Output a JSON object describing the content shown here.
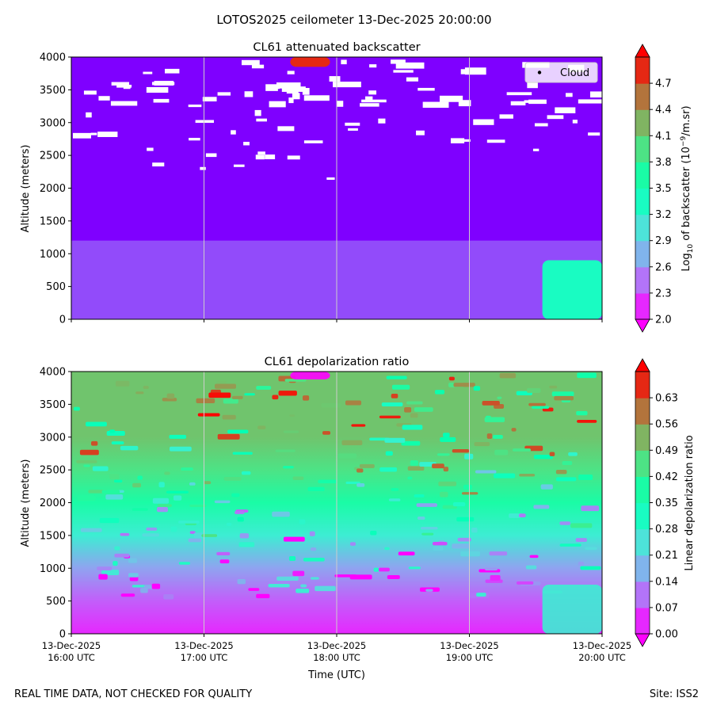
{
  "figure": {
    "suptitle": "LOTOS2025 ceilometer 13-Dec-2025 20:00:00",
    "footer_left": "REAL TIME DATA, NOT CHECKED FOR QUALITY",
    "footer_right": "Site: ISS2",
    "xlabel": "Time (UTC)"
  },
  "chart_data": [
    {
      "type": "heatmap",
      "title": "CL61 attenuated backscatter",
      "ylabel": "Altitude (meters)",
      "ylim": [
        0,
        4000
      ],
      "yticks": [
        0,
        500,
        1000,
        1500,
        2000,
        2500,
        3000,
        3500,
        4000
      ],
      "x_ticks": [
        {
          "line1": "13-Dec-2025",
          "line2": "16:00 UTC"
        },
        {
          "line1": "13-Dec-2025",
          "line2": "17:00 UTC"
        },
        {
          "line1": "13-Dec-2025",
          "line2": "18:00 UTC"
        },
        {
          "line1": "13-Dec-2025",
          "line2": "19:00 UTC"
        },
        {
          "line1": "13-Dec-2025",
          "line2": "20:00 UTC"
        }
      ],
      "x_tick_labels_shown": false,
      "colorbar": {
        "label_prefix": "Log",
        "label_sub": "10",
        "label_mid": " of backscatter (10",
        "label_sup": "−9",
        "label_suffix": "/m.sr)",
        "range": [
          2.0,
          5.0
        ],
        "ticks": [
          "2.0",
          "2.3",
          "2.6",
          "2.9",
          "3.2",
          "3.5",
          "3.8",
          "4.1",
          "4.4",
          "4.7"
        ],
        "colormap": "rainbow"
      },
      "legend": {
        "entries": [
          "Cloud"
        ],
        "placement": "top-right",
        "marker_color": "#000000"
      },
      "background_level": 0.13,
      "features": [
        {
          "name": "near-ground aerosol enhancement",
          "t0": 3.55,
          "t1": 4.0,
          "z0": 0,
          "z1": 900,
          "level": 0.45
        },
        {
          "name": "high backscatter patch",
          "t0": 1.65,
          "t1": 1.95,
          "z0": 3850,
          "z1": 4000,
          "level": 0.95
        }
      ],
      "cloud_layer": {
        "z0": 2150,
        "z1": 4000,
        "color": "#ffffff"
      }
    },
    {
      "type": "heatmap",
      "title": "CL61 depolarization ratio",
      "ylabel": "Altitude (meters)",
      "ylim": [
        0,
        4000
      ],
      "yticks": [
        0,
        500,
        1000,
        1500,
        2000,
        2500,
        3000,
        3500,
        4000
      ],
      "x_ticks": [
        {
          "line1": "13-Dec-2025",
          "line2": "16:00 UTC"
        },
        {
          "line1": "13-Dec-2025",
          "line2": "17:00 UTC"
        },
        {
          "line1": "13-Dec-2025",
          "line2": "18:00 UTC"
        },
        {
          "line1": "13-Dec-2025",
          "line2": "19:00 UTC"
        },
        {
          "line1": "13-Dec-2025",
          "line2": "20:00 UTC"
        }
      ],
      "x_tick_labels_shown": true,
      "colorbar": {
        "label": "Linear depolarization ratio",
        "range": [
          0.0,
          0.7
        ],
        "ticks": [
          "0.00",
          "0.07",
          "0.14",
          "0.21",
          "0.28",
          "0.35",
          "0.42",
          "0.49",
          "0.56",
          "0.63"
        ],
        "colormap": "rainbow"
      },
      "profile": [
        {
          "z": 0,
          "level": 0.05
        },
        {
          "z": 500,
          "level": 0.12
        },
        {
          "z": 1000,
          "level": 0.22
        },
        {
          "z": 1500,
          "level": 0.38
        },
        {
          "z": 2000,
          "level": 0.55
        },
        {
          "z": 2500,
          "level": 0.65
        },
        {
          "z": 3000,
          "level": 0.72
        },
        {
          "z": 3500,
          "level": 0.72
        },
        {
          "z": 4000,
          "level": 0.72
        }
      ],
      "features": [
        {
          "name": "near-ground enhancement",
          "t0": 3.55,
          "t1": 4.0,
          "z0": 0,
          "z1": 750,
          "level": 0.38
        },
        {
          "name": "low depolarization patch",
          "t0": 1.65,
          "t1": 1.95,
          "z0": 3880,
          "z1": 4000,
          "level": 0.0
        }
      ]
    }
  ]
}
